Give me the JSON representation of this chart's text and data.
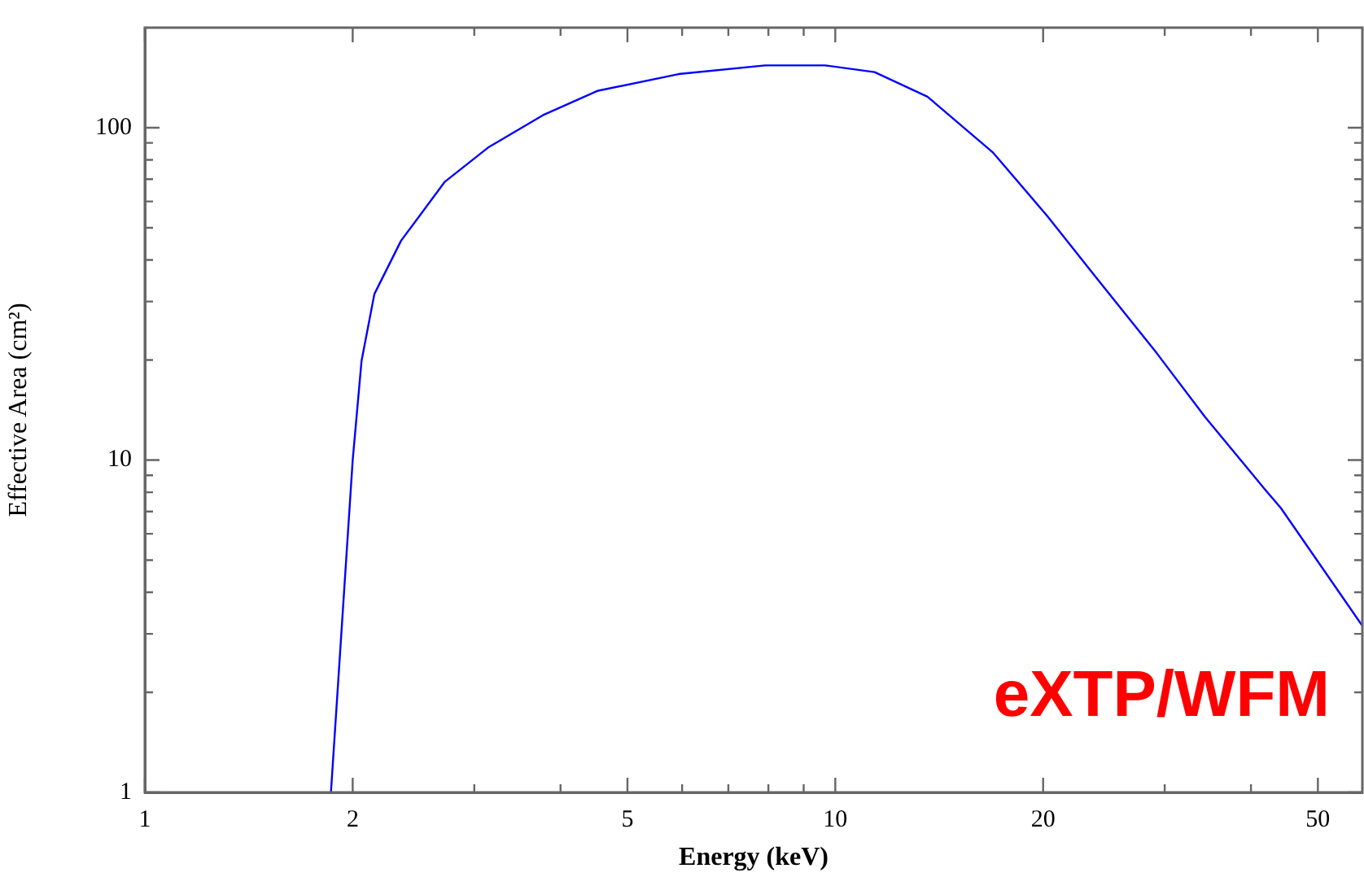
{
  "chart_data": {
    "type": "line",
    "xlabel": "Energy (keV)",
    "ylabel": "Effective Area (cm²)",
    "log": "xy",
    "grid": false,
    "legend": false,
    "marker": "none",
    "line_style": "solid",
    "xlim": [
      1,
      58
    ],
    "ylim": [
      1,
      200
    ],
    "xticks": [
      1,
      2,
      {
        "value": 3,
        "label": null
      },
      {
        "value": 4,
        "label": null
      },
      5,
      {
        "value": 6,
        "label": null
      },
      {
        "value": 7,
        "label": null
      },
      {
        "value": 8,
        "label": null
      },
      {
        "value": 9,
        "label": null
      },
      10,
      20,
      {
        "value": 30,
        "label": null
      },
      {
        "value": 40,
        "label": null
      },
      50
    ],
    "yticks": [
      1,
      {
        "value": 2,
        "label": null
      },
      {
        "value": 3,
        "label": null
      },
      {
        "value": 4,
        "label": null
      },
      {
        "value": 5,
        "label": null
      },
      {
        "value": 6,
        "label": null
      },
      {
        "value": 7,
        "label": null
      },
      {
        "value": 8,
        "label": null
      },
      {
        "value": 9,
        "label": null
      },
      10,
      {
        "value": 20,
        "label": null
      },
      {
        "value": 30,
        "label": null
      },
      {
        "value": 40,
        "label": null
      },
      {
        "value": 50,
        "label": null
      },
      {
        "value": 60,
        "label": null
      },
      {
        "value": 70,
        "label": null
      },
      {
        "value": 80,
        "label": null
      },
      {
        "value": 90,
        "label": null
      },
      100
    ],
    "annotations": [
      "eXTP/WFM"
    ],
    "series": [
      {
        "color": "#0000ff",
        "x": [
          1.86,
          2.0,
          2.06,
          2.15,
          2.35,
          2.72,
          3.15,
          3.77,
          4.52,
          5.93,
          7.92,
          9.67,
          11.4,
          13.6,
          16.9,
          20.3,
          23.9,
          29.2,
          34.3,
          41.9,
          44.2,
          58
        ],
        "values": [
          1,
          10,
          19.9,
          31.6,
          45.7,
          68.8,
          87.5,
          109,
          129,
          145,
          154,
          154,
          147,
          124,
          84.4,
          54.1,
          35.3,
          21.0,
          13.5,
          8.16,
          7.17,
          3.17
        ]
      }
    ]
  }
}
